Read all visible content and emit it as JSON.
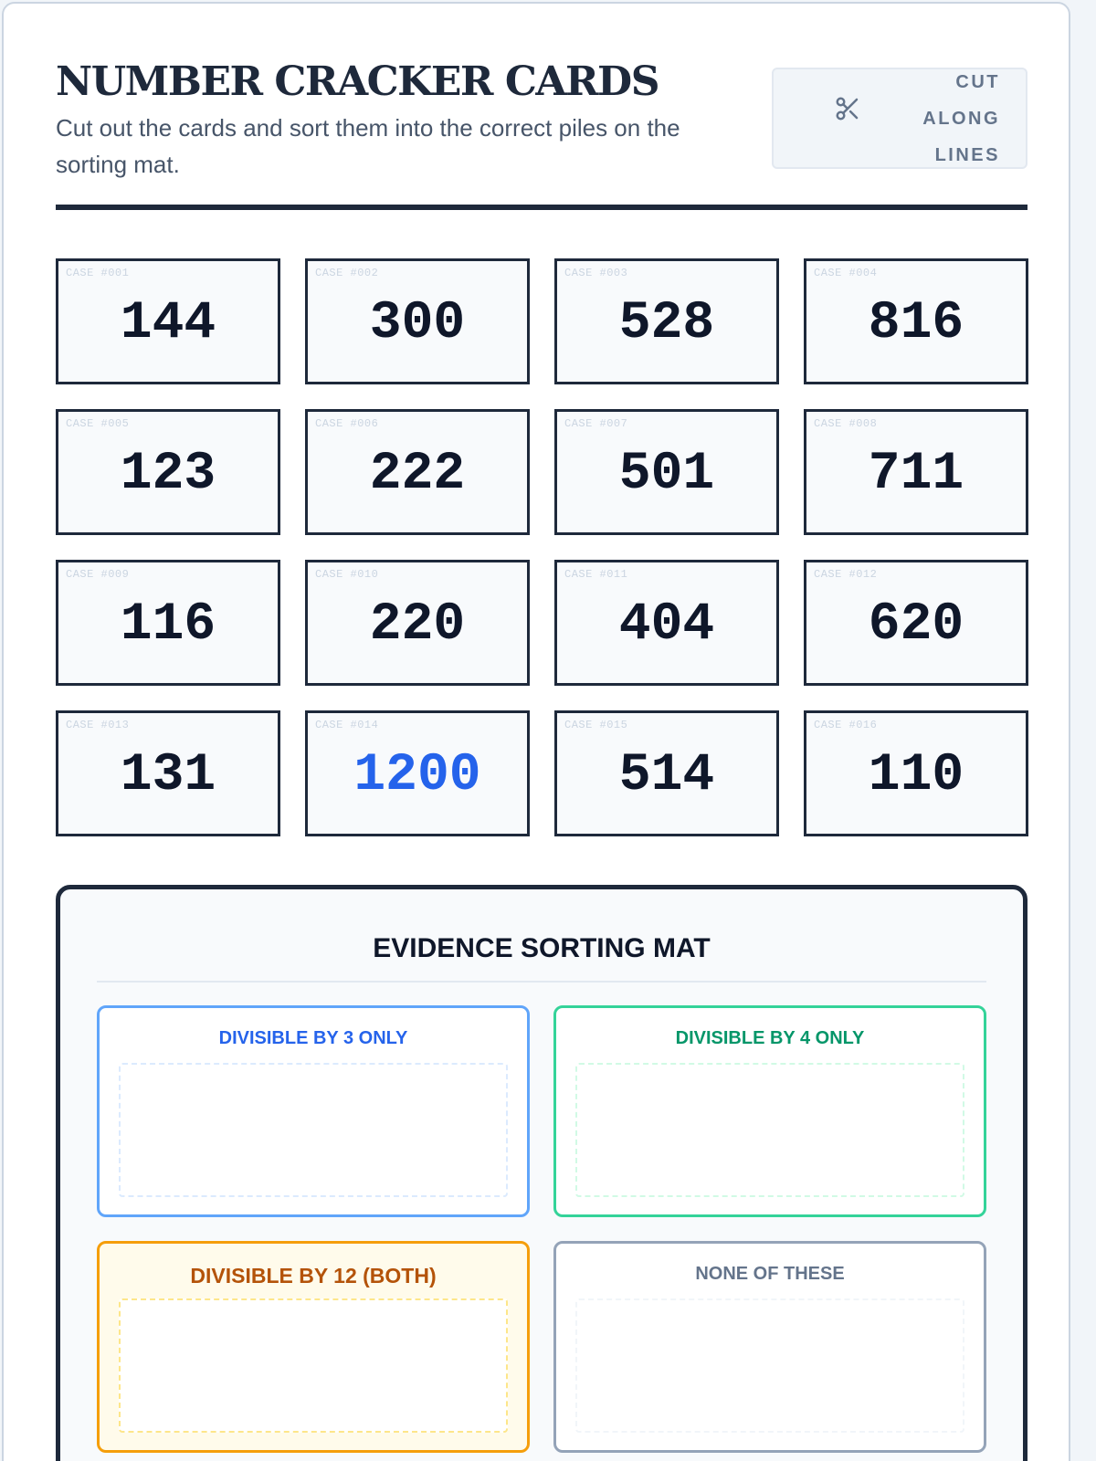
{
  "header": {
    "title": "NUMBER CRACKER CARDS",
    "subtitle": "Cut out the cards and sort them into the correct piles on the sorting mat.",
    "cut_button": {
      "label": "CUT ALONG LINES",
      "icon": "scissors-icon"
    }
  },
  "cards": [
    {
      "case": "CASE #001",
      "value": "144"
    },
    {
      "case": "CASE #002",
      "value": "300"
    },
    {
      "case": "CASE #003",
      "value": "528"
    },
    {
      "case": "CASE #004",
      "value": "816"
    },
    {
      "case": "CASE #005",
      "value": "123"
    },
    {
      "case": "CASE #006",
      "value": "222"
    },
    {
      "case": "CASE #007",
      "value": "501"
    },
    {
      "case": "CASE #008",
      "value": "711"
    },
    {
      "case": "CASE #009",
      "value": "116"
    },
    {
      "case": "CASE #010",
      "value": "220"
    },
    {
      "case": "CASE #011",
      "value": "404"
    },
    {
      "case": "CASE #012",
      "value": "620"
    },
    {
      "case": "CASE #013",
      "value": "131"
    },
    {
      "case": "CASE #014",
      "value": "1200",
      "highlight": true
    },
    {
      "case": "CASE #015",
      "value": "514"
    },
    {
      "case": "CASE #016",
      "value": "110"
    }
  ],
  "mat": {
    "title": "EVIDENCE SORTING MAT",
    "bins": [
      {
        "label": "DIVISIBLE BY 3 ONLY",
        "color": "#2563eb",
        "border": "#60a5fa",
        "dash": "#dbeafe",
        "bg": "#ffffff"
      },
      {
        "label": "DIVISIBLE BY 4 ONLY",
        "color": "#059669",
        "border": "#34d399",
        "dash": "#d1fae5",
        "bg": "#ffffff"
      },
      {
        "label": "DIVISIBLE BY 12 (BOTH)",
        "color": "#b45309",
        "border": "#f59e0b",
        "dash": "#fde68a",
        "bg": "#fffbeb"
      },
      {
        "label": "NONE OF THESE",
        "color": "#64748b",
        "border": "#94a3b8",
        "dash": "#f1f5f9",
        "bg": "#ffffff"
      }
    ]
  }
}
